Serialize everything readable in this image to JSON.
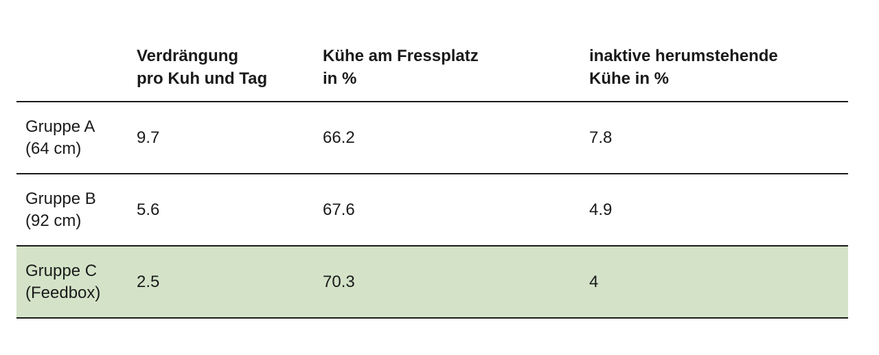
{
  "table": {
    "headers": [
      {
        "lines": [
          ""
        ]
      },
      {
        "lines": [
          "Verdrängung",
          "pro Kuh und Tag"
        ]
      },
      {
        "lines": [
          "Kühe am Fressplatz",
          "in %"
        ]
      },
      {
        "lines": [
          "inaktive herumstehende",
          "Kühe in %"
        ]
      }
    ],
    "rows": [
      {
        "group": [
          "Gruppe A",
          "(64 cm)"
        ],
        "values": [
          "9.7",
          "66.2",
          "7.8"
        ]
      },
      {
        "group": [
          "Gruppe B",
          "(92 cm)"
        ],
        "values": [
          "5.6",
          "67.6",
          "4.9"
        ]
      },
      {
        "group": [
          "Gruppe C",
          "(Feedbox)"
        ],
        "values": [
          "2.5",
          "70.3",
          "4"
        ]
      }
    ],
    "highlight_color": "#d4e3c8",
    "highlighted_row": "Gruppe C"
  }
}
